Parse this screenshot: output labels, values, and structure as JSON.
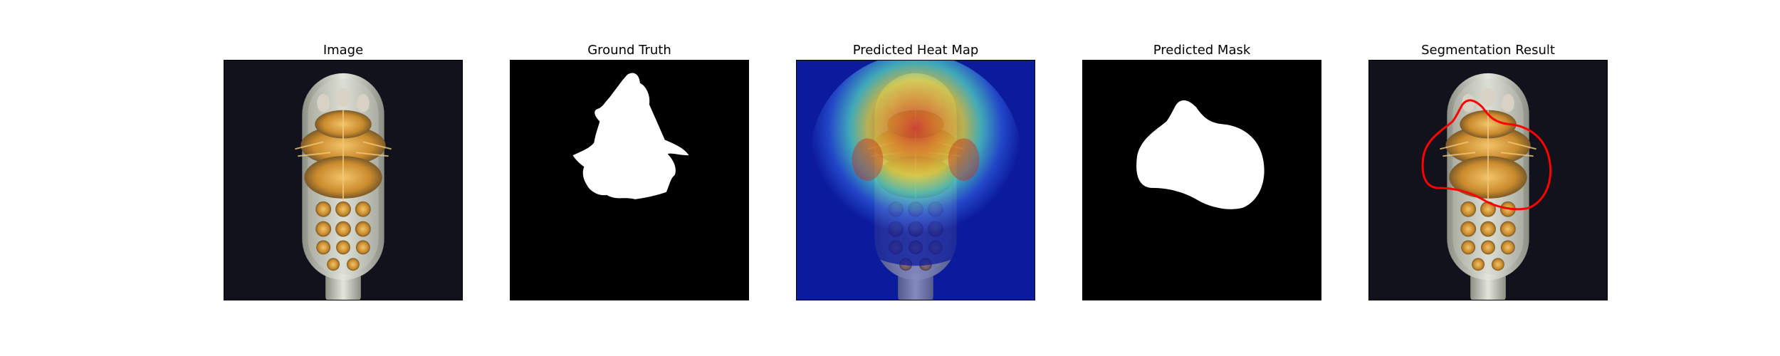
{
  "figure": {
    "panels": [
      {
        "title": "Image"
      },
      {
        "title": "Ground Truth"
      },
      {
        "title": "Predicted Heat Map"
      },
      {
        "title": "Predicted Mask"
      },
      {
        "title": "Segmentation Result"
      }
    ]
  },
  "colors": {
    "photo_background": "#12121c",
    "mask_background": "#000000",
    "mask_foreground": "#ffffff",
    "contour": "#ff0000",
    "heatmap_low": "#0a1a9a",
    "heatmap_high": "#d0201a"
  }
}
